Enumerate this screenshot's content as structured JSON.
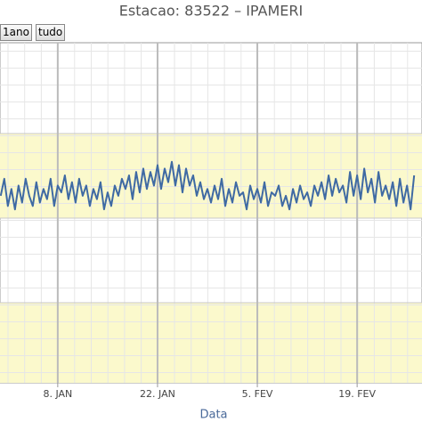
{
  "chart_data": {
    "type": "line",
    "title": "Estacao: 83522 – IPAMERI",
    "range_buttons": [
      "1ano",
      "tudo"
    ],
    "x_label": "Data",
    "xlim": [
      -0.1,
      59.1
    ],
    "ylim": [
      0,
      100
    ],
    "xticks": [
      {
        "value": 8,
        "label": "8. JAN"
      },
      {
        "value": 22,
        "label": "22. JAN"
      },
      {
        "value": 36,
        "label": "5. FEV"
      },
      {
        "value": 50,
        "label": "19. FEV"
      }
    ],
    "grid": true,
    "series": [
      {
        "color": "#3f6aa3",
        "x": [
          0,
          0.5,
          1,
          1.5,
          2,
          2.5,
          3,
          3.5,
          4,
          4.5,
          5,
          5.5,
          6,
          6.5,
          7,
          7.5,
          8,
          8.5,
          9,
          9.5,
          10,
          10.5,
          11,
          11.5,
          12,
          12.5,
          13,
          13.5,
          14,
          14.5,
          15,
          15.5,
          16,
          16.5,
          17,
          17.5,
          18,
          18.5,
          19,
          19.5,
          20,
          20.5,
          21,
          21.5,
          22,
          22.5,
          23,
          23.5,
          24,
          24.5,
          25,
          25.5,
          26,
          26.5,
          27,
          27.5,
          28,
          28.5,
          29,
          29.5,
          30,
          30.5,
          31,
          31.5,
          32,
          32.5,
          33,
          33.5,
          34,
          34.5,
          35,
          35.5,
          36,
          36.5,
          37,
          37.5,
          38,
          38.5,
          39,
          39.5,
          40,
          40.5,
          41,
          41.5,
          42,
          42.5,
          43,
          43.5,
          44,
          44.5,
          45,
          45.5,
          46,
          46.5,
          47,
          47.5,
          48,
          48.5,
          49,
          49.5,
          50,
          50.5,
          51,
          51.5,
          52,
          52.5,
          53,
          53.5,
          54,
          54.5,
          55,
          55.5,
          56,
          56.5,
          57,
          57.5,
          58
        ],
        "values": [
          55,
          60,
          52,
          57,
          51,
          58,
          53,
          60,
          55,
          52,
          59,
          53,
          57,
          54,
          60,
          52,
          58,
          56,
          61,
          54,
          59,
          53,
          60,
          55,
          58,
          52,
          57,
          54,
          59,
          51,
          56,
          52,
          58,
          55,
          60,
          57,
          61,
          54,
          62,
          56,
          63,
          57,
          62,
          58,
          64,
          57,
          63,
          59,
          65,
          58,
          64,
          56,
          63,
          58,
          61,
          55,
          59,
          54,
          57,
          53,
          58,
          54,
          60,
          52,
          57,
          53,
          59,
          55,
          56,
          51,
          58,
          54,
          57,
          53,
          59,
          52,
          56,
          55,
          58,
          52,
          55,
          51,
          57,
          53,
          58,
          54,
          56,
          52,
          58,
          55,
          59,
          54,
          61,
          55,
          60,
          56,
          58,
          53,
          62,
          55,
          61,
          54,
          63,
          56,
          60,
          53,
          62,
          55,
          58,
          54,
          59,
          52,
          60,
          53,
          58,
          51,
          61
        ]
      }
    ]
  }
}
